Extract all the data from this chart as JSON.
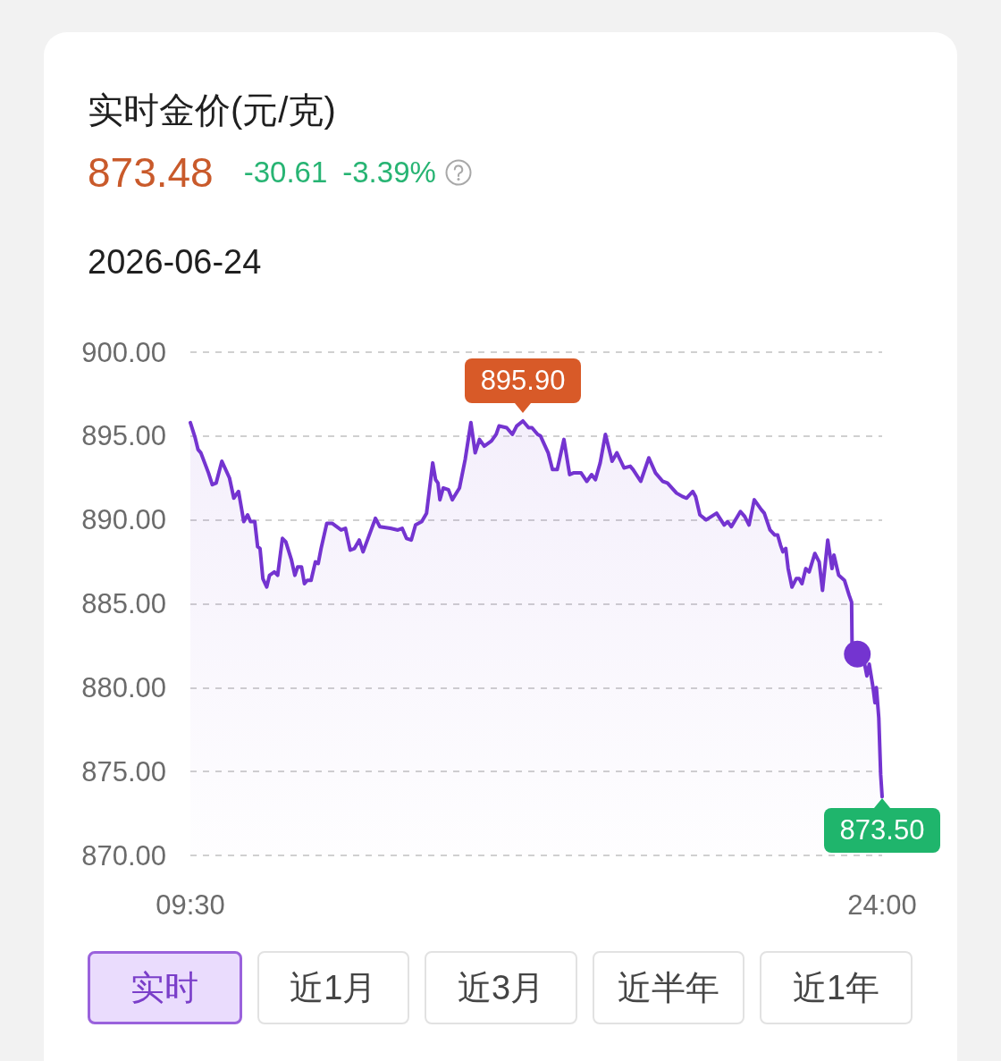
{
  "chart_data": {
    "type": "area",
    "title": "实时金价(元/克)",
    "subtitle": "2026-06-24",
    "annotations": [
      "873.48",
      "-30.61",
      "-3.39%",
      "实时",
      "近1月",
      "近3月",
      "近半年",
      "近1年",
      {
        "text": "895.90",
        "x": 16.47,
        "y": 895.9
      },
      {
        "text": "873.50",
        "x": 24,
        "y": 873.5
      }
    ],
    "x": [
      9.5,
      9.6,
      9.66,
      9.72,
      9.88,
      9.96,
      10.04,
      10.16,
      10.32,
      10.41,
      10.51,
      10.62,
      10.7,
      10.76,
      10.85,
      10.91,
      10.96,
      11.02,
      11.1,
      11.16,
      11.26,
      11.33,
      11.43,
      11.5,
      11.62,
      11.69,
      11.75,
      11.83,
      11.89,
      11.95,
      12.03,
      12.12,
      12.18,
      12.24,
      12.36,
      12.47,
      12.66,
      12.75,
      12.85,
      12.94,
      13.04,
      13.12,
      13.38,
      13.47,
      13.69,
      13.85,
      13.94,
      14.03,
      14.13,
      14.22,
      14.35,
      14.45,
      14.58,
      14.64,
      14.69,
      14.73,
      14.8,
      14.91,
      14.99,
      15.14,
      15.26,
      15.38,
      15.47,
      15.56,
      15.66,
      15.81,
      15.91,
      15.97,
      16.13,
      16.19,
      16.25,
      16.34,
      16.47,
      16.59,
      16.66,
      16.78,
      16.84,
      17,
      17.09,
      17.19,
      17.33,
      17.45,
      17.53,
      17.69,
      17.81,
      17.91,
      17.99,
      18.09,
      18.2,
      18.34,
      18.44,
      18.59,
      18.72,
      18.78,
      18.94,
      19.11,
      19.25,
      19.4,
      19.5,
      19.69,
      19.81,
      19.9,
      20.03,
      20.09,
      20.18,
      20.31,
      20.53,
      20.69,
      20.76,
      20.84,
      21.03,
      21.12,
      21.21,
      21.32,
      21.47,
      21.53,
      21.65,
      21.75,
      21.81,
      21.87,
      21.92,
      21.98,
      22.03,
      22.11,
      22.2,
      22.26,
      22.32,
      22.4,
      22.47,
      22.59,
      22.68,
      22.75,
      22.86,
      22.95,
      22.99,
      23.09,
      23.21,
      23.31,
      23.36,
      23.37,
      23.48,
      23.62,
      23.68,
      23.73,
      23.81,
      23.85,
      23.88,
      23.93,
      23.97,
      24
    ],
    "series": [
      {
        "color": "#7434d0",
        "values": [
          895.8,
          894.9,
          894.2,
          894.0,
          892.8,
          892.1,
          892.2,
          893.5,
          892.5,
          891.3,
          891.7,
          889.9,
          890.3,
          889.9,
          889.9,
          888.4,
          888.3,
          886.5,
          886.0,
          886.7,
          886.9,
          886.7,
          888.9,
          888.7,
          887.6,
          886.7,
          887.2,
          887.2,
          886.2,
          886.4,
          886.4,
          887.5,
          887.4,
          888.3,
          889.8,
          889.8,
          889.4,
          889.5,
          888.2,
          888.3,
          888.8,
          888.1,
          890.1,
          889.6,
          889.5,
          889.4,
          889.5,
          888.9,
          888.8,
          889.7,
          889.9,
          890.4,
          893.4,
          892.4,
          892.2,
          891.2,
          891.9,
          891.8,
          891.2,
          891.9,
          893.6,
          895.8,
          894.0,
          894.8,
          894.4,
          894.7,
          895.1,
          895.6,
          895.5,
          895.3,
          895.1,
          895.6,
          895.9,
          895.5,
          895.5,
          895.1,
          895.0,
          894.0,
          893.0,
          893.0,
          894.8,
          892.7,
          892.8,
          892.8,
          892.3,
          892.7,
          892.4,
          893.4,
          895.1,
          893.5,
          894.0,
          893.1,
          893.2,
          893.0,
          892.3,
          893.7,
          892.8,
          892.3,
          892.2,
          891.6,
          891.4,
          891.3,
          891.7,
          891.4,
          890.3,
          890.0,
          890.4,
          889.7,
          889.9,
          889.6,
          890.5,
          890.2,
          889.7,
          891.2,
          890.6,
          890.4,
          889.4,
          889.1,
          889.1,
          888.5,
          888.1,
          888.3,
          887.1,
          886.0,
          886.5,
          886.5,
          886.2,
          887.1,
          886.9,
          888.0,
          887.5,
          885.8,
          888.8,
          887.1,
          887.9,
          886.7,
          886.4,
          885.5,
          885.1,
          882.5,
          882.0,
          881.6,
          880.7,
          881.4,
          880.0,
          879.1,
          880.0,
          878.2,
          874.8,
          873.5
        ]
      },
      {
        "type": "scatter",
        "x": [
          23.48
        ],
        "values": [
          882.0
        ],
        "color": "#7434d0",
        "marker": "circle"
      }
    ],
    "xlim": [
      9.5,
      24
    ],
    "ylim": [
      870,
      900
    ],
    "xticks": [
      {
        "value": 9.5,
        "label": "09:30"
      },
      {
        "value": 24,
        "label": "24:00"
      }
    ],
    "yticks": [
      {
        "value": 870,
        "label": "870.00"
      },
      {
        "value": 875,
        "label": "875.00"
      },
      {
        "value": 880,
        "label": "880.00"
      },
      {
        "value": 885,
        "label": "885.00"
      },
      {
        "value": 890,
        "label": "890.00"
      },
      {
        "value": 895,
        "label": "895.00"
      },
      {
        "value": 900,
        "label": "900.00"
      }
    ],
    "grid": "y",
    "marker": "none",
    "line_style": "solid"
  }
}
